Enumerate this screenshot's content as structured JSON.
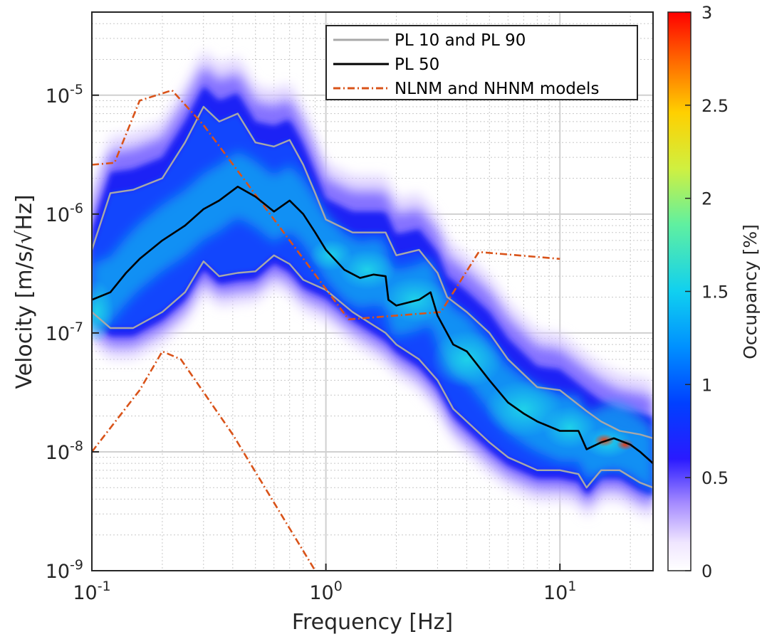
{
  "chart_data": {
    "type": "heatmap",
    "title": "",
    "xlabel": "Frequency [Hz]",
    "ylabel": "Velocity [m/s/√Hz]",
    "xscale": "log",
    "yscale": "log",
    "xlim": [
      0.1,
      25
    ],
    "ylim": [
      1e-09,
      5e-05
    ],
    "grid": true,
    "x_ticks": [
      {
        "base": "10",
        "exp": "-1",
        "value": 0.1
      },
      {
        "base": "10",
        "exp": "0",
        "value": 1
      },
      {
        "base": "10",
        "exp": "1",
        "value": 10
      }
    ],
    "y_ticks": [
      {
        "base": "10",
        "exp": "-9",
        "value": 1e-09
      },
      {
        "base": "10",
        "exp": "-8",
        "value": 1e-08
      },
      {
        "base": "10",
        "exp": "-7",
        "value": 1e-07
      },
      {
        "base": "10",
        "exp": "-6",
        "value": 1e-06
      },
      {
        "base": "10",
        "exp": "-5",
        "value": 1e-05
      }
    ],
    "colorbar": {
      "label": "Occupancy [%]",
      "range": [
        0,
        3
      ],
      "ticks": [
        "0",
        "0.5",
        "1",
        "1.5",
        "2",
        "2.5",
        "3"
      ],
      "colormap": "white-purple-blue-cyan-yellow-red"
    },
    "legend": {
      "placement": "top-right",
      "entries": [
        {
          "label": "PL 10 and PL 90",
          "color": "#a8a8a8",
          "style": "solid"
        },
        {
          "label": "PL 50",
          "color": "#000000",
          "style": "solid"
        },
        {
          "label": "NLNM and NHNM models",
          "color": "#d95319",
          "style": "dashdot"
        }
      ]
    },
    "series": [
      {
        "name": "PL 50",
        "color": "#000000",
        "x": [
          0.1,
          0.12,
          0.14,
          0.16,
          0.2,
          0.25,
          0.3,
          0.35,
          0.42,
          0.5,
          0.6,
          0.7,
          0.8,
          0.9,
          1.0,
          1.2,
          1.4,
          1.6,
          1.8,
          1.85,
          2.0,
          2.5,
          2.8,
          3.0,
          3.5,
          4.0,
          5.0,
          6.0,
          7.0,
          8.0,
          10.0,
          12.0,
          13.0,
          15.0,
          17.0,
          20.0,
          22.0,
          25.0
        ],
        "y": [
          1.9e-07,
          2.2e-07,
          3.2e-07,
          4.2e-07,
          6e-07,
          8e-07,
          1.1e-06,
          1.3e-06,
          1.7e-06,
          1.4e-06,
          1.05e-06,
          1.3e-06,
          1e-06,
          7e-07,
          5e-07,
          3.4e-07,
          2.9e-07,
          3.1e-07,
          3e-07,
          1.9e-07,
          1.7e-07,
          1.9e-07,
          2.2e-07,
          1.4e-07,
          8e-08,
          7e-08,
          4e-08,
          2.6e-08,
          2.1e-08,
          1.8e-08,
          1.5e-08,
          1.5e-08,
          1.05e-08,
          1.2e-08,
          1.3e-08,
          1.15e-08,
          1e-08,
          8e-09
        ]
      },
      {
        "name": "PL 90",
        "color": "#a8a8a8",
        "x": [
          0.1,
          0.12,
          0.15,
          0.2,
          0.25,
          0.3,
          0.35,
          0.42,
          0.5,
          0.6,
          0.7,
          0.8,
          0.9,
          1.0,
          1.3,
          1.8,
          2.0,
          2.5,
          3.0,
          3.3,
          4.0,
          5.0,
          6.0,
          8.0,
          10.0,
          13.0,
          15.0,
          18.0,
          22.0,
          25.0
        ],
        "y": [
          5e-07,
          1.5e-06,
          1.6e-06,
          2e-06,
          4e-06,
          8e-06,
          6e-06,
          7e-06,
          4e-06,
          3.7e-06,
          4.2e-06,
          2.6e-06,
          1.5e-06,
          9e-07,
          7e-07,
          7e-07,
          4.5e-07,
          5e-07,
          3.2e-07,
          2e-07,
          1.5e-07,
          1e-07,
          6e-08,
          3.5e-08,
          3.3e-08,
          2.2e-08,
          1.8e-08,
          1.5e-08,
          1.4e-08,
          1.3e-08
        ]
      },
      {
        "name": "PL 10",
        "color": "#a8a8a8",
        "x": [
          0.1,
          0.12,
          0.15,
          0.2,
          0.25,
          0.3,
          0.35,
          0.42,
          0.5,
          0.6,
          0.7,
          0.8,
          1.0,
          1.3,
          1.8,
          2.0,
          2.5,
          3.0,
          3.5,
          4.0,
          5.0,
          6.0,
          8.0,
          10.0,
          12.0,
          13.0,
          15.0,
          18.0,
          22.0,
          25.0
        ],
        "y": [
          1.5e-07,
          1.1e-07,
          1.1e-07,
          1.5e-07,
          2.2e-07,
          4e-07,
          3e-07,
          3.2e-07,
          3.3e-07,
          4.5e-07,
          3.8e-07,
          2.8e-07,
          2.3e-07,
          1.5e-07,
          1e-07,
          8e-08,
          6e-08,
          4e-08,
          2.3e-08,
          1.8e-08,
          1.2e-08,
          9e-09,
          7e-09,
          7e-09,
          6.5e-09,
          5e-09,
          7e-09,
          7e-09,
          5.5e-09,
          5e-09
        ]
      },
      {
        "name": "NHNM",
        "color": "#d95319",
        "x": [
          0.1,
          0.125,
          0.16,
          0.22,
          0.3,
          1.25,
          3.1,
          4.5,
          10.0
        ],
        "y": [
          2.6e-06,
          2.7e-06,
          9e-06,
          1.1e-05,
          5.6e-06,
          1.3e-07,
          1.5e-07,
          4.8e-07,
          4.2e-07
        ]
      },
      {
        "name": "NLNM",
        "color": "#d95319",
        "x": [
          0.1,
          0.16,
          0.2,
          0.24,
          0.4,
          0.9
        ],
        "y": [
          1e-08,
          3.3e-08,
          7e-08,
          6e-08,
          1.4e-08,
          1e-09
        ]
      }
    ]
  }
}
